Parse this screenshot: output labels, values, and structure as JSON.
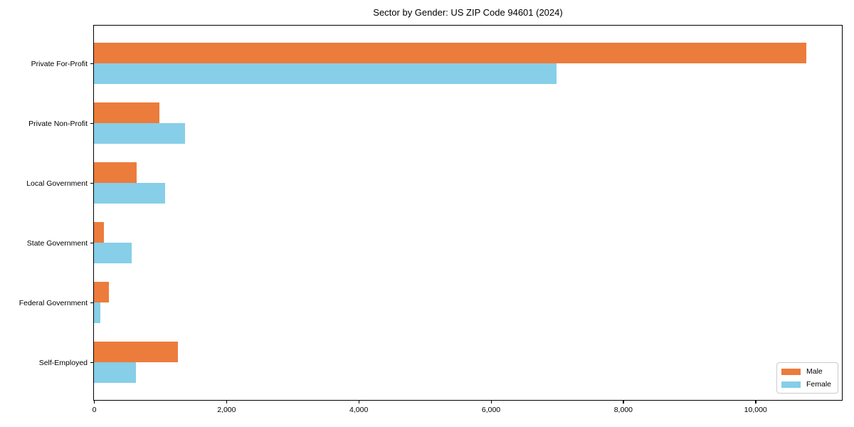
{
  "chart_data": {
    "type": "bar",
    "orientation": "horizontal",
    "title": "Sector by Gender: US ZIP Code 94601 (2024)",
    "categories": [
      "Private For-Profit",
      "Private Non-Profit",
      "Local Government",
      "State Government",
      "Federal Government",
      "Self-Employed"
    ],
    "series": [
      {
        "name": "Male",
        "color": "#ec7c3c",
        "values": [
          10770,
          990,
          650,
          150,
          230,
          1265
        ]
      },
      {
        "name": "Female",
        "color": "#87cee8",
        "values": [
          7000,
          1380,
          1080,
          570,
          100,
          630
        ]
      }
    ],
    "xlabel": "",
    "ylabel": "",
    "xlim": [
      0,
      11300
    ],
    "xticks": [
      0,
      2000,
      4000,
      6000,
      8000,
      10000
    ],
    "xtick_labels": [
      "0",
      "2,000",
      "4,000",
      "6,000",
      "8,000",
      "10,000"
    ],
    "grid": false,
    "legend": {
      "position": "lower right"
    }
  },
  "colors": {
    "axis": "#000000",
    "legend_border": "#cccccc",
    "background": "#ffffff"
  }
}
